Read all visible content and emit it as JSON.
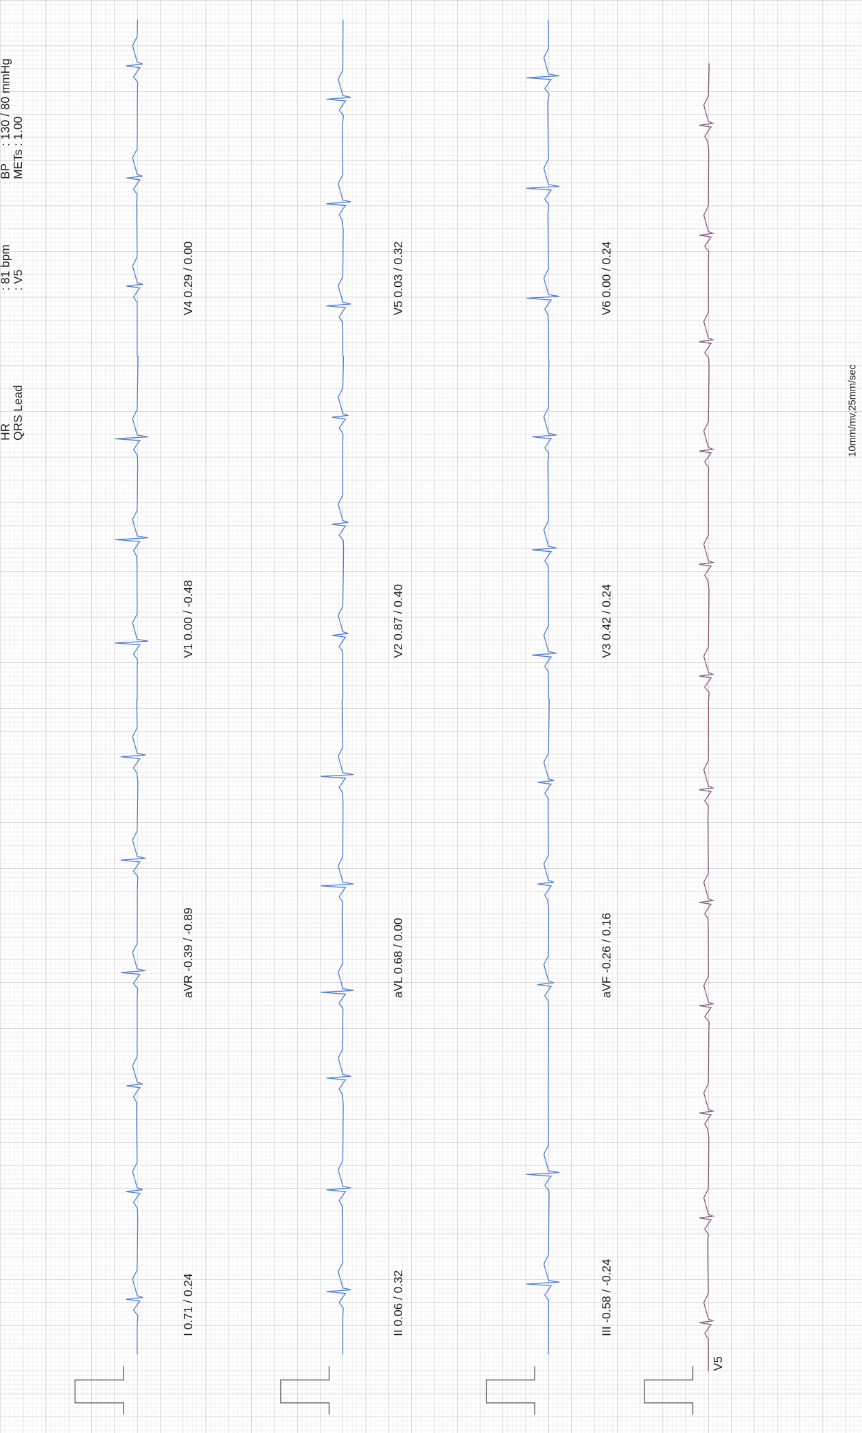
{
  "header": {
    "hr_label": "HR",
    "hr_value": ": 81 bpm",
    "qrs_label": "QRS Lead",
    "qrs_value": ": V5",
    "bp_label": "BP",
    "bp_value": ": 130 / 80 mmHg",
    "mets_label": "METs",
    "mets_value": ": 1.00"
  },
  "leads": [
    [
      "I 0.71 / 0.24",
      "aVR -0.39 / -0.89",
      "V1 0.00 / -0.48",
      "V4 0.29 / 0.00"
    ],
    [
      "II 0.06 / 0.32",
      "aVL 0.68 / 0.00",
      "V2 0.87 / 0.40",
      "V5 0.03 / 0.32"
    ],
    [
      "III -0.58 / -0.24",
      "aVF -0.26 / 0.16",
      "V3 0.42 / 0.24",
      "V6 0.00 / 0.24"
    ]
  ],
  "rhythm_label": "V5",
  "calibration": "10mm/mv,25mm/sec"
}
